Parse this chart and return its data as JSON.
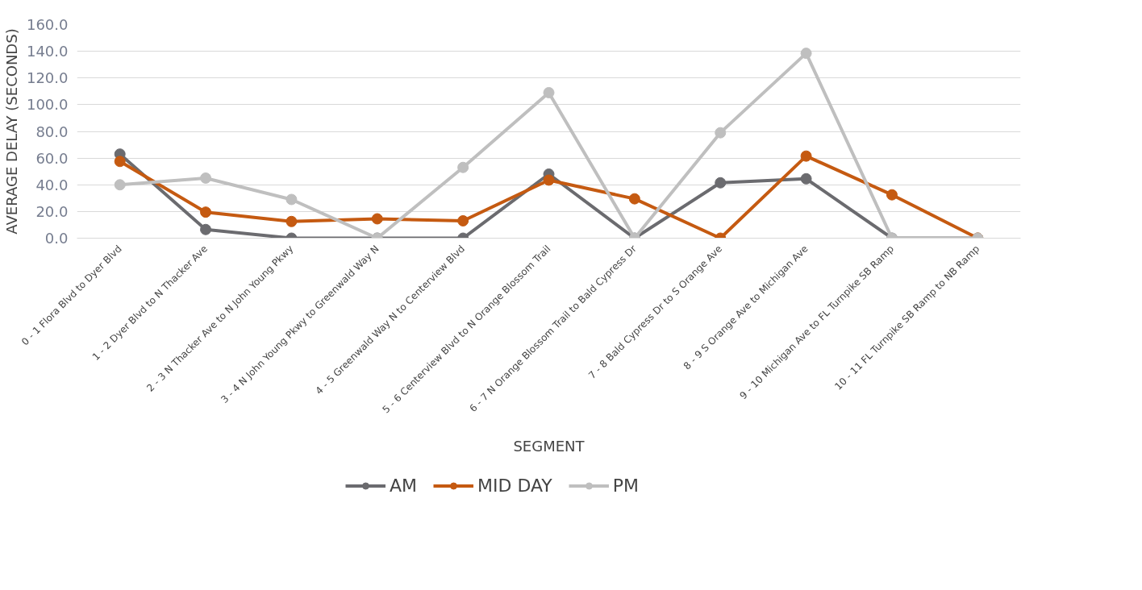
{
  "chart_data": {
    "type": "line",
    "xlabel": "SEGMENT",
    "ylabel": "AVERAGE DELAY (SECONDS)",
    "categories": [
      "0 - 1 Flora Blvd to Dyer Blvd",
      "1 - 2 Dyer Blvd to N Thacker Ave",
      "2 - 3 N Thacker Ave to N John Young Pkwy",
      "3 - 4 N John Young Pkwy to Greenwald Way N",
      "4 - 5 Greenwald Way N to Centerview Blvd",
      "5 - 6 Centerview Blvd to N Orange Blossom Trail",
      "6 - 7 N Orange Blossom Trail to Bald Cypress Dr",
      "7 - 8 Bald Cypress Dr to S Orange Ave",
      "8 - 9 S Orange Ave to Michigan Ave",
      "9 - 10 Michigan Ave to FL Turnpike SB Ramp",
      "10 - 11 FL Turnpike SB Ramp to NB Ramp"
    ],
    "series": [
      {
        "name": "AM",
        "color": "#6b6b6f",
        "values": [
          63,
          6.5,
          0,
          0,
          0,
          48,
          0,
          41.5,
          44.5,
          0,
          0
        ]
      },
      {
        "name": "MID DAY",
        "color": "#c55a11",
        "values": [
          57.5,
          19.5,
          12.5,
          14.5,
          13,
          43.5,
          29.5,
          0,
          61.5,
          32.5,
          0
        ]
      },
      {
        "name": "PM",
        "color": "#bfbfbf",
        "values": [
          40,
          45,
          29,
          0,
          53,
          109,
          0,
          79,
          138.5,
          0,
          0
        ]
      }
    ],
    "ylim": [
      0,
      160
    ],
    "yticks": [
      {
        "value": 0,
        "label": "0.0"
      },
      {
        "value": 20,
        "label": "20.0"
      },
      {
        "value": 40,
        "label": "40.0"
      },
      {
        "value": 60,
        "label": "60.0"
      },
      {
        "value": 80,
        "label": "80.0"
      },
      {
        "value": 100,
        "label": "100.0"
      },
      {
        "value": 120,
        "label": "120.0"
      },
      {
        "value": 140,
        "label": "140.0"
      },
      {
        "value": 160,
        "label": "160.0"
      }
    ],
    "grid": "y",
    "legend": "bottom",
    "marker": "circle",
    "line_style": "solid"
  }
}
